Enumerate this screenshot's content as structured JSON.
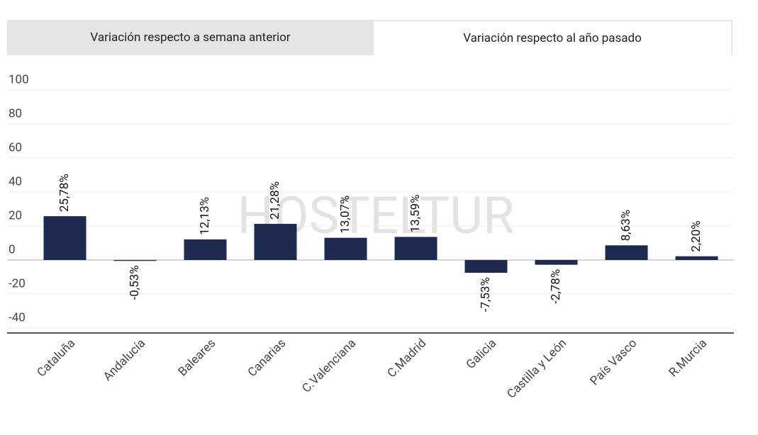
{
  "tabs": [
    "Variación respecto a semana anterior",
    "Variación respecto al año pasado"
  ],
  "watermark": "HOSTELTUR",
  "chart_data": {
    "type": "bar",
    "categories": [
      "Cataluña",
      "Andalucía",
      "Baleares",
      "Canarias",
      "C.Valenciana",
      "C.Madrid",
      "Galicia",
      "Castilla y León",
      "País Vasco",
      "R.Murcia"
    ],
    "values": [
      25.78,
      -0.53,
      12.13,
      21.28,
      13.07,
      13.59,
      -7.53,
      -2.78,
      8.63,
      2.2
    ],
    "value_labels": [
      "25,78%",
      "-0,53%",
      "12,13%",
      "21,28%",
      "13,07%",
      "13,59%",
      "-7,53%",
      "-2,78%",
      "8,63%",
      "2,20%"
    ],
    "color": "#1e2a50",
    "ylim": [
      -40,
      100
    ],
    "yticks": [
      -40,
      -20,
      0,
      20,
      40,
      60,
      80,
      100
    ],
    "grid": true
  }
}
